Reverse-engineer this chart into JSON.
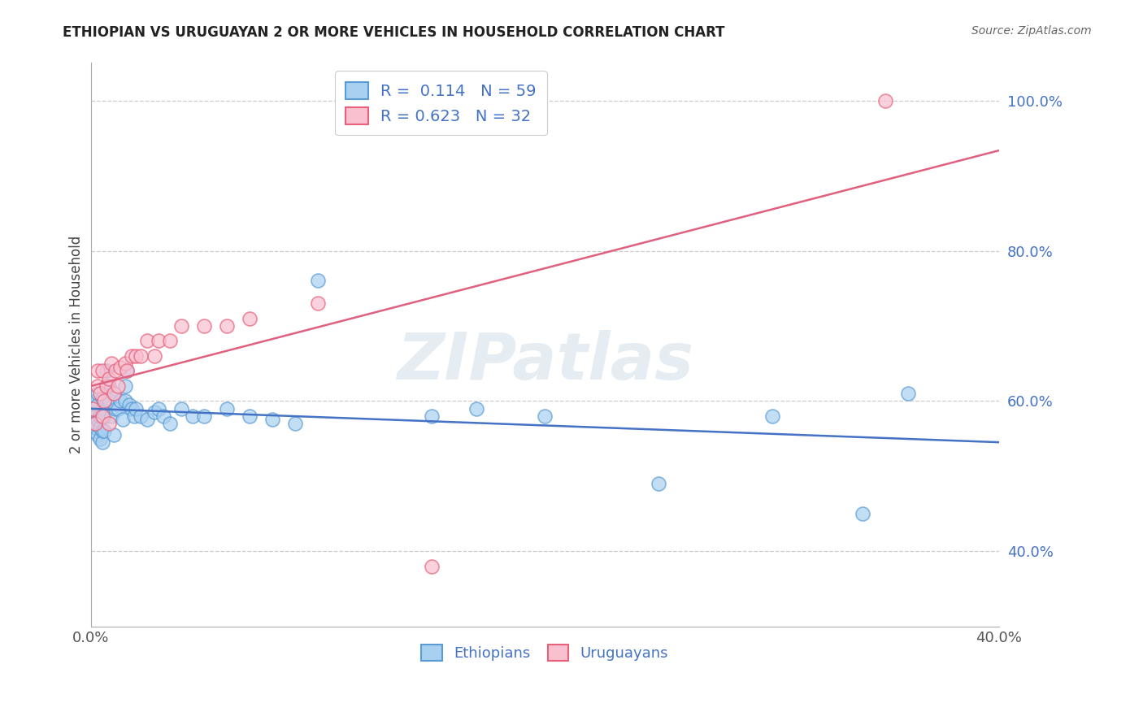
{
  "title": "ETHIOPIAN VS URUGUAYAN 2 OR MORE VEHICLES IN HOUSEHOLD CORRELATION CHART",
  "source": "Source: ZipAtlas.com",
  "ylabel": "2 or more Vehicles in Household",
  "watermark": "ZIPatlas",
  "xlim": [
    0.0,
    0.4
  ],
  "ylim": [
    0.3,
    1.05
  ],
  "x_ticks": [
    0.0,
    0.05,
    0.1,
    0.15,
    0.2,
    0.25,
    0.3,
    0.35,
    0.4
  ],
  "y_ticks": [
    0.4,
    0.6,
    0.8,
    1.0
  ],
  "y_tick_labels": [
    "40.0%",
    "60.0%",
    "80.0%",
    "100.0%"
  ],
  "ethiopian_R": 0.114,
  "ethiopian_N": 59,
  "uruguayan_R": 0.623,
  "uruguayan_N": 32,
  "ethiopian_color": "#a8d0f0",
  "uruguayan_color": "#f9c0d0",
  "ethiopian_edge_color": "#5b9bd5",
  "uruguayan_edge_color": "#e8607a",
  "ethiopian_line_color": "#4472c4",
  "uruguayan_line_color": "#e06080",
  "label_color": "#4472c4",
  "ethiopian_x": [
    0.001,
    0.001,
    0.001,
    0.002,
    0.002,
    0.002,
    0.002,
    0.003,
    0.003,
    0.003,
    0.003,
    0.004,
    0.004,
    0.004,
    0.005,
    0.005,
    0.005,
    0.005,
    0.006,
    0.006,
    0.007,
    0.007,
    0.008,
    0.008,
    0.009,
    0.01,
    0.01,
    0.011,
    0.012,
    0.013,
    0.014,
    0.015,
    0.015,
    0.016,
    0.017,
    0.018,
    0.019,
    0.02,
    0.022,
    0.025,
    0.028,
    0.03,
    0.032,
    0.035,
    0.04,
    0.045,
    0.05,
    0.06,
    0.07,
    0.08,
    0.09,
    0.1,
    0.15,
    0.17,
    0.2,
    0.25,
    0.3,
    0.34,
    0.36
  ],
  "ethiopian_y": [
    0.575,
    0.59,
    0.56,
    0.57,
    0.58,
    0.565,
    0.6,
    0.555,
    0.575,
    0.595,
    0.61,
    0.55,
    0.565,
    0.58,
    0.545,
    0.56,
    0.59,
    0.605,
    0.56,
    0.58,
    0.62,
    0.64,
    0.6,
    0.62,
    0.58,
    0.555,
    0.61,
    0.59,
    0.59,
    0.6,
    0.575,
    0.6,
    0.62,
    0.64,
    0.595,
    0.59,
    0.58,
    0.59,
    0.58,
    0.575,
    0.585,
    0.59,
    0.58,
    0.57,
    0.59,
    0.58,
    0.58,
    0.59,
    0.58,
    0.575,
    0.57,
    0.76,
    0.58,
    0.59,
    0.58,
    0.49,
    0.58,
    0.45,
    0.61
  ],
  "uruguayan_x": [
    0.001,
    0.002,
    0.003,
    0.003,
    0.004,
    0.005,
    0.005,
    0.006,
    0.007,
    0.008,
    0.008,
    0.009,
    0.01,
    0.011,
    0.012,
    0.013,
    0.015,
    0.016,
    0.018,
    0.02,
    0.022,
    0.025,
    0.028,
    0.03,
    0.035,
    0.04,
    0.05,
    0.06,
    0.07,
    0.1,
    0.15,
    0.35
  ],
  "uruguayan_y": [
    0.59,
    0.57,
    0.62,
    0.64,
    0.61,
    0.58,
    0.64,
    0.6,
    0.62,
    0.57,
    0.63,
    0.65,
    0.61,
    0.64,
    0.62,
    0.645,
    0.65,
    0.64,
    0.66,
    0.66,
    0.66,
    0.68,
    0.66,
    0.68,
    0.68,
    0.7,
    0.7,
    0.7,
    0.71,
    0.73,
    0.38,
    1.0
  ],
  "background_color": "#ffffff",
  "grid_color": "#cccccc"
}
